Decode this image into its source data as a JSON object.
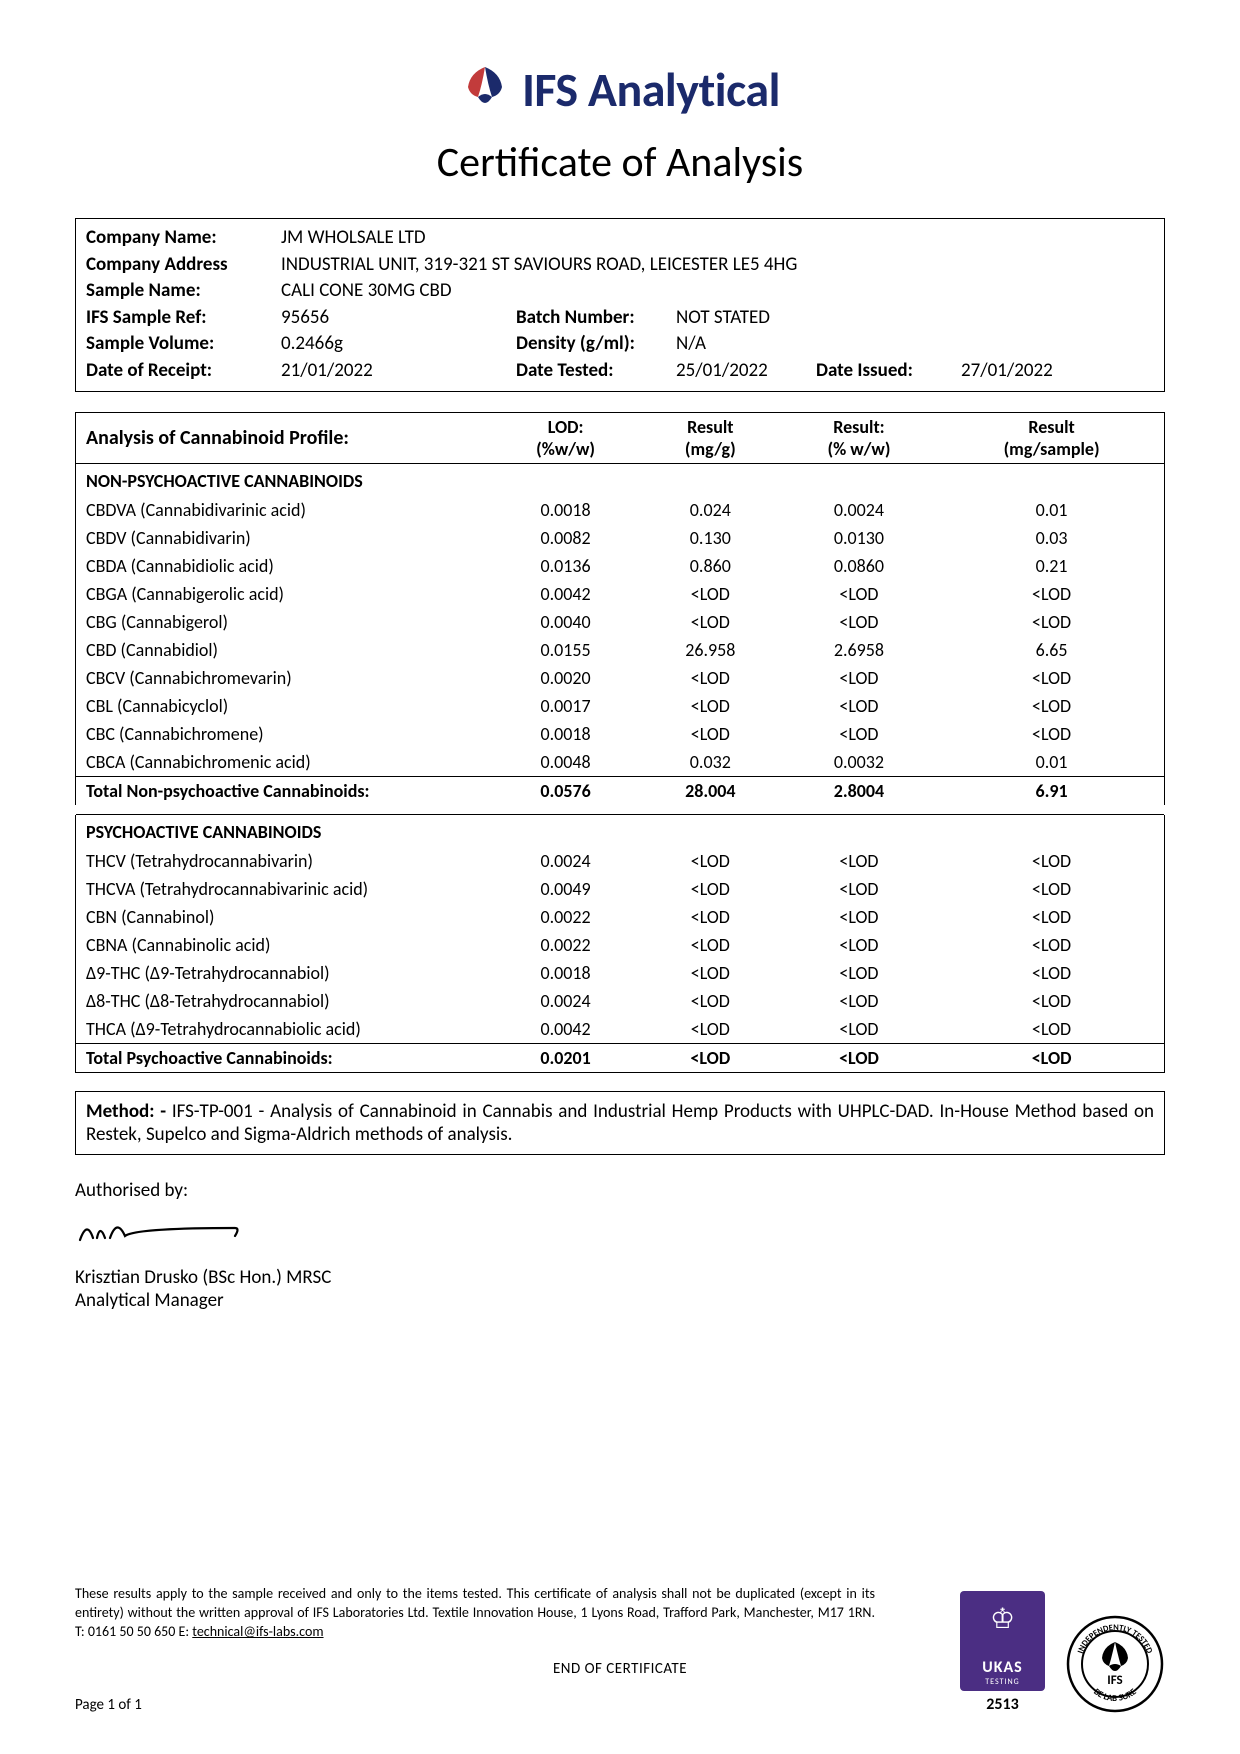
{
  "header": {
    "brand": "IFS Analytical",
    "title": "Certificate of Analysis"
  },
  "info": {
    "company_name_label": "Company Name:",
    "company_name": "JM WHOLSALE LTD",
    "company_address_label": "Company Address",
    "company_address": "INDUSTRIAL UNIT, 319-321 ST SAVIOURS ROAD, LEICESTER LE5 4HG",
    "sample_name_label": "Sample Name:",
    "sample_name": "CALI CONE 30MG CBD",
    "sample_ref_label": "IFS Sample Ref:",
    "sample_ref": "95656",
    "batch_label": "Batch Number:",
    "batch": "NOT STATED",
    "volume_label": "Sample Volume:",
    "volume": "0.2466g",
    "density_label": "Density (g/ml):",
    "density": "N/A",
    "receipt_label": "Date of Receipt:",
    "receipt": "21/01/2022",
    "tested_label": "Date Tested:",
    "tested": "25/01/2022",
    "issued_label": "Date Issued:",
    "issued": "27/01/2022"
  },
  "table": {
    "title": "Analysis of Cannabinoid Profile:",
    "col_lod_1": "LOD:",
    "col_lod_2": "(%w/w)",
    "col_r1_1": "Result",
    "col_r1_2": "(mg/g)",
    "col_r2_1": "Result:",
    "col_r2_2": "(% w/w)",
    "col_r3_1": "Result",
    "col_r3_2": "(mg/sample)",
    "section1": "NON-PSYCHOACTIVE CANNABINOIDS",
    "rows1": [
      {
        "n": "CBDVA (Cannabidivarinic acid)",
        "lod": "0.0018",
        "r1": "0.024",
        "r2": "0.0024",
        "r3": "0.01"
      },
      {
        "n": "CBDV (Cannabidivarin)",
        "lod": "0.0082",
        "r1": "0.130",
        "r2": "0.0130",
        "r3": "0.03"
      },
      {
        "n": "CBDA (Cannabidiolic acid)",
        "lod": "0.0136",
        "r1": "0.860",
        "r2": "0.0860",
        "r3": "0.21"
      },
      {
        "n": "CBGA (Cannabigerolic acid)",
        "lod": "0.0042",
        "r1": "<LOD",
        "r2": "<LOD",
        "r3": "<LOD"
      },
      {
        "n": "CBG (Cannabigerol)",
        "lod": "0.0040",
        "r1": "<LOD",
        "r2": "<LOD",
        "r3": "<LOD"
      },
      {
        "n": "CBD (Cannabidiol)",
        "lod": "0.0155",
        "r1": "26.958",
        "r2": "2.6958",
        "r3": "6.65"
      },
      {
        "n": "CBCV (Cannabichromevarin)",
        "lod": "0.0020",
        "r1": "<LOD",
        "r2": "<LOD",
        "r3": "<LOD"
      },
      {
        "n": "CBL (Cannabicyclol)",
        "lod": "0.0017",
        "r1": "<LOD",
        "r2": "<LOD",
        "r3": "<LOD"
      },
      {
        "n": "CBC (Cannabichromene)",
        "lod": "0.0018",
        "r1": "<LOD",
        "r2": "<LOD",
        "r3": "<LOD"
      },
      {
        "n": "CBCA (Cannabichromenic acid)",
        "lod": "0.0048",
        "r1": "0.032",
        "r2": "0.0032",
        "r3": "0.01"
      }
    ],
    "total1": {
      "n": "Total Non-psychoactive Cannabinoids:",
      "lod": "0.0576",
      "r1": "28.004",
      "r2": "2.8004",
      "r3": "6.91"
    },
    "section2": "PSYCHOACTIVE CANNABINOIDS",
    "rows2": [
      {
        "n": "THCV (Tetrahydrocannabivarin)",
        "lod": "0.0024",
        "r1": "<LOD",
        "r2": "<LOD",
        "r3": "<LOD"
      },
      {
        "n": "THCVA (Tetrahydrocannabivarinic acid)",
        "lod": "0.0049",
        "r1": "<LOD",
        "r2": "<LOD",
        "r3": "<LOD"
      },
      {
        "n": "CBN (Cannabinol)",
        "lod": "0.0022",
        "r1": "<LOD",
        "r2": "<LOD",
        "r3": "<LOD"
      },
      {
        "n": "CBNA (Cannabinolic acid)",
        "lod": "0.0022",
        "r1": "<LOD",
        "r2": "<LOD",
        "r3": "<LOD"
      },
      {
        "n": "Δ9-THC (Δ9-Tetrahydrocannabiol)",
        "lod": "0.0018",
        "r1": "<LOD",
        "r2": "<LOD",
        "r3": "<LOD"
      },
      {
        "n": "Δ8-THC (Δ8-Tetrahydrocannabiol)",
        "lod": "0.0024",
        "r1": "<LOD",
        "r2": "<LOD",
        "r3": "<LOD"
      },
      {
        "n": "THCA (Δ9-Tetrahydrocannabiolic acid)",
        "lod": "0.0042",
        "r1": "<LOD",
        "r2": "<LOD",
        "r3": "<LOD"
      }
    ],
    "total2": {
      "n": "Total Psychoactive Cannabinoids:",
      "lod": "0.0201",
      "r1": "<LOD",
      "r2": "<LOD",
      "r3": "<LOD"
    }
  },
  "method": {
    "label": "Method: -",
    "text": " IFS-TP-001 - Analysis of Cannabinoid in Cannabis and Industrial Hemp Products with UHPLC-DAD. In-House Method based on Restek, Supelco and Sigma-Aldrich methods of analysis."
  },
  "auth": {
    "label": "Authorised by:",
    "name": "Krisztian Drusko (BSc Hon.) MRSC",
    "title": "Analytical Manager"
  },
  "footer": {
    "disclaimer": "These results apply to the sample received and only to the items tested. This certificate of analysis shall not be duplicated (except in its entirety) without the written approval of IFS Laboratories Ltd. Textile Innovation House, 1 Lyons Road, Trafford Park, Manchester, M17 1RN. T: 0161 50 50 650 E: ",
    "email": "technical@ifs-labs.com",
    "end": "END OF CERTIFICATE",
    "page": "Page 1 of 1",
    "ukas_label": "UKAS",
    "ukas_sub": "TESTING",
    "ukas_num": "2513"
  },
  "colors": {
    "brand_navy": "#1b2a6b",
    "brand_red": "#c23b3b",
    "ukas_purple": "#4b2e83"
  }
}
